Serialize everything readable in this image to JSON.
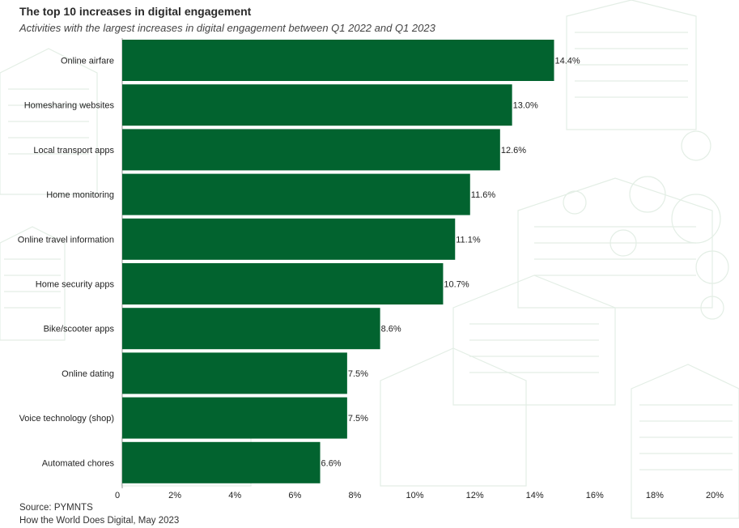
{
  "header": {
    "title": "The top 10 increases in digital engagement",
    "subtitle": "Activities with the largest increases in digital engagement between Q1 2022 and Q1 2023"
  },
  "footer": {
    "source": "Source: PYMNTS",
    "publication": "How the World Does Digital, May 2023"
  },
  "colors": {
    "bar": "#02632f",
    "background_art": "#eef5ef"
  },
  "chart_data": {
    "type": "bar",
    "orientation": "horizontal",
    "title": "The top 10 increases in digital engagement",
    "subtitle": "Activities with the largest increases in digital engagement between Q1 2022 and Q1 2023",
    "categories": [
      "Online airfare",
      "Homesharing websites",
      "Local transport apps",
      "Home monitoring",
      "Online travel information",
      "Home security apps",
      "Bike/scooter apps",
      "Online dating",
      "Voice technology (shop)",
      "Automated chores"
    ],
    "values": [
      14.4,
      13.0,
      12.6,
      11.6,
      11.1,
      10.7,
      8.6,
      7.5,
      7.5,
      6.6
    ],
    "data_labels": [
      "14.4%",
      "13.0%",
      "12.6%",
      "11.6%",
      "11.1%",
      "10.7%",
      "8.6%",
      "7.5%",
      "7.5%",
      "6.6%"
    ],
    "xlim": [
      0,
      20
    ],
    "xticks": [
      0,
      2,
      4,
      6,
      8,
      10,
      12,
      14,
      16,
      18,
      20
    ],
    "xtick_labels": [
      "0",
      "2%",
      "4%",
      "6%",
      "8%",
      "10%",
      "12%",
      "14%",
      "16%",
      "18%",
      "20%"
    ],
    "grid": false,
    "legend": "none"
  }
}
